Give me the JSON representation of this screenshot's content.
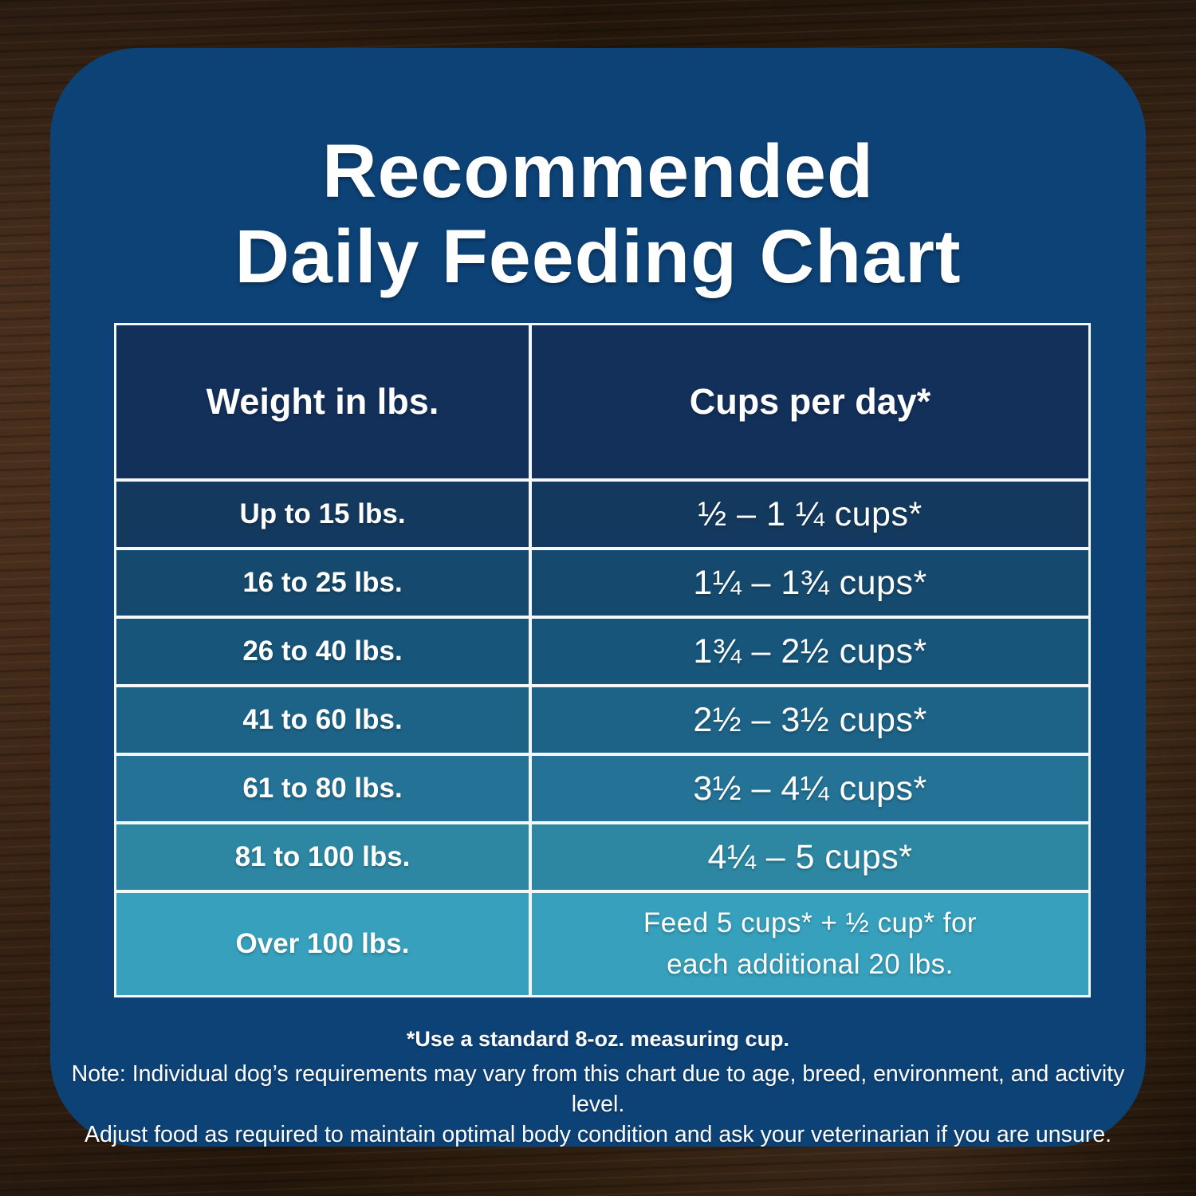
{
  "title": {
    "line1": "Recommended",
    "line2": "Daily Feeding Chart"
  },
  "table": {
    "headers": {
      "weight": "Weight in lbs.",
      "cups": "Cups per day*"
    },
    "header_bg": "#13305a",
    "rows": [
      {
        "weight": "Up to 15 lbs.",
        "cups": "½ – 1 ¼ cups*",
        "bg": "#14395e"
      },
      {
        "weight": "16 to 25 lbs.",
        "cups": "1¼ – 1¾  cups*",
        "bg": "#154a6e"
      },
      {
        "weight": "26 to 40 lbs.",
        "cups": "1¾ – 2½ cups*",
        "bg": "#17557b"
      },
      {
        "weight": "41 to 60 lbs.",
        "cups": "2½ – 3½ cups*",
        "bg": "#1d6387"
      },
      {
        "weight": "61 to 80 lbs.",
        "cups": "3½ – 4¼ cups*",
        "bg": "#247296"
      },
      {
        "weight": "81 to 100 lbs.",
        "cups": "4¼ – 5 cups*",
        "bg": "#2d87a3"
      },
      {
        "weight": "Over 100 lbs.",
        "cups_line1": "Feed 5 cups* + ½ cup* for",
        "cups_line2": "each additional 20 lbs.",
        "bg": "#37a0bc"
      }
    ]
  },
  "footnotes": {
    "measuring_cup": "*Use a standard 8-oz. measuring cup.",
    "note_line1": "Note: Individual dog’s requirements may vary from this chart due to age, breed, environment, and activity level.",
    "note_line2": "Adjust food as required to maintain optimal body condition and ask your veterinarian if you are unsure."
  },
  "colors": {
    "card": "#0d4276",
    "header_cell": "#13305a",
    "table_border": "#f5f8fb",
    "text": "#ffffff",
    "wood_base": "#3a2414"
  },
  "chart_data": {
    "type": "table",
    "title": "Recommended Daily Feeding Chart",
    "columns": [
      "Weight in lbs.",
      "Cups per day*"
    ],
    "rows": [
      [
        "Up to 15 lbs.",
        "½ – 1 ¼ cups*"
      ],
      [
        "16 to 25 lbs.",
        "1¼ – 1¾ cups*"
      ],
      [
        "26 to 40 lbs.",
        "1¾ – 2½ cups*"
      ],
      [
        "41 to 60 lbs.",
        "2½ – 3½ cups*"
      ],
      [
        "61 to 80 lbs.",
        "3½ – 4¼ cups*"
      ],
      [
        "81 to 100 lbs.",
        "4¼ – 5 cups*"
      ],
      [
        "Over 100 lbs.",
        "Feed 5 cups* + ½ cup* for each additional 20 lbs."
      ]
    ],
    "notes": [
      "*Use a standard 8-oz. measuring cup.",
      "Note: Individual dog’s requirements may vary from this chart due to age, breed, environment, and activity level.",
      "Adjust food as required to maintain optimal body condition and ask your veterinarian if you are unsure."
    ],
    "layout_hints": {
      "row_background_gradient": [
        "#14395e",
        "#154a6e",
        "#17557b",
        "#1d6387",
        "#247296",
        "#2d87a3",
        "#37a0bc"
      ],
      "grid": "white cell borders",
      "legend": "none"
    }
  }
}
